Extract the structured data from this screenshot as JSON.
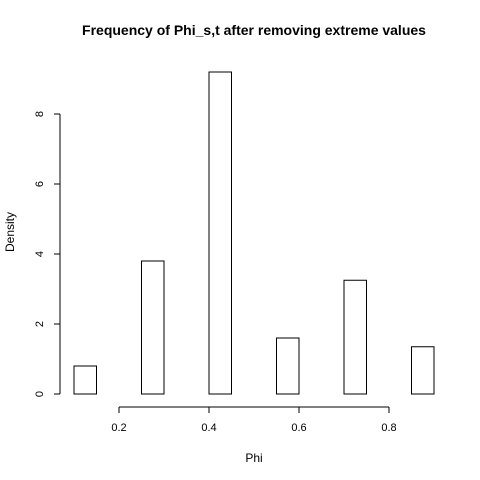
{
  "chart_data": {
    "type": "bar",
    "title": "Frequency of Phi_s,t after removing extreme values",
    "xlabel": "Phi",
    "ylabel": "Density",
    "bins": [
      {
        "x0": 0.1,
        "x1": 0.15,
        "density": 0.8
      },
      {
        "x0": 0.15,
        "x1": 0.2,
        "density": 0
      },
      {
        "x0": 0.2,
        "x1": 0.25,
        "density": 0
      },
      {
        "x0": 0.25,
        "x1": 0.3,
        "density": 3.8
      },
      {
        "x0": 0.3,
        "x1": 0.35,
        "density": 0
      },
      {
        "x0": 0.35,
        "x1": 0.4,
        "density": 0
      },
      {
        "x0": 0.4,
        "x1": 0.45,
        "density": 9.2
      },
      {
        "x0": 0.45,
        "x1": 0.5,
        "density": 0
      },
      {
        "x0": 0.5,
        "x1": 0.55,
        "density": 0
      },
      {
        "x0": 0.55,
        "x1": 0.6,
        "density": 1.6
      },
      {
        "x0": 0.6,
        "x1": 0.65,
        "density": 0
      },
      {
        "x0": 0.65,
        "x1": 0.7,
        "density": 0
      },
      {
        "x0": 0.7,
        "x1": 0.75,
        "density": 3.25
      },
      {
        "x0": 0.75,
        "x1": 0.8,
        "density": 0
      },
      {
        "x0": 0.8,
        "x1": 0.85,
        "density": 0
      },
      {
        "x0": 0.85,
        "x1": 0.9,
        "density": 1.35
      }
    ],
    "xticks": [
      {
        "value": 0.2,
        "label": "0.2"
      },
      {
        "value": 0.4,
        "label": "0.4"
      },
      {
        "value": 0.6,
        "label": "0.6"
      },
      {
        "value": 0.8,
        "label": "0.8"
      }
    ],
    "yticks": [
      {
        "value": 0,
        "label": "0"
      },
      {
        "value": 2,
        "label": "2"
      },
      {
        "value": 4,
        "label": "4"
      },
      {
        "value": 6,
        "label": "6"
      },
      {
        "value": 8,
        "label": "8"
      }
    ],
    "xlim": [
      0.1,
      0.9
    ],
    "ylim": [
      0,
      9.2
    ],
    "grid": false,
    "bar_fill": "#ffffff",
    "bar_stroke": "#000000"
  }
}
